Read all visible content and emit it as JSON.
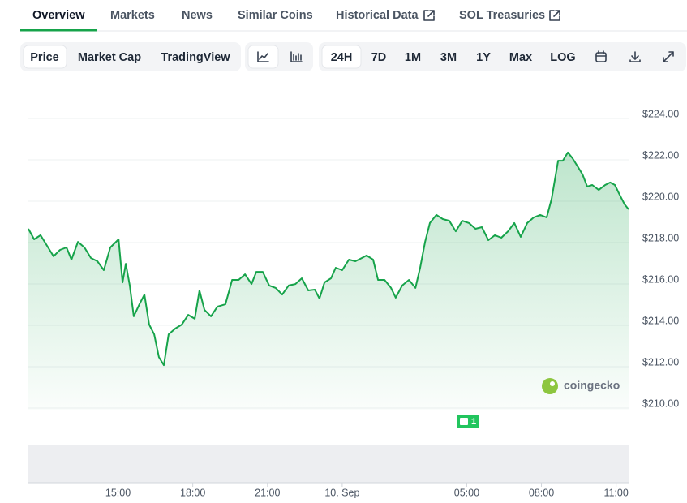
{
  "tabs": [
    "Overview",
    "Markets",
    "News",
    "Similar Coins",
    "Historical Data",
    "SOL Treasuries"
  ],
  "view_buttons": [
    "Price",
    "Market Cap",
    "TradingView"
  ],
  "range_buttons": [
    "24H",
    "7D",
    "1M",
    "3M",
    "1Y",
    "Max",
    "LOG"
  ],
  "chart_data": {
    "type": "line",
    "color": "#16a34a",
    "x": [
      11.4,
      11.63,
      11.89,
      12.15,
      12.41,
      12.67,
      12.93,
      13.13,
      13.39,
      13.65,
      13.91,
      14.17,
      14.43,
      14.69,
      15.02,
      15.18,
      15.31,
      15.47,
      15.63,
      15.86,
      16.06,
      16.25,
      16.45,
      16.64,
      16.84,
      17.03,
      17.3,
      17.56,
      17.82,
      18.08,
      18.27,
      18.47,
      18.73,
      18.99,
      19.31,
      19.58,
      19.84,
      20.1,
      20.36,
      20.55,
      20.81,
      21.07,
      21.33,
      21.59,
      21.85,
      22.12,
      22.38,
      22.64,
      22.9,
      23.09,
      23.29,
      23.55,
      23.74,
      24.0,
      24.27,
      24.53,
      24.79,
      24.98,
      25.24,
      25.44,
      25.7,
      25.96,
      26.15,
      26.41,
      26.68,
      26.94,
      27.13,
      27.33,
      27.52,
      27.78,
      28.04,
      28.3,
      28.56,
      28.82,
      29.09,
      29.35,
      29.61,
      29.87,
      30.13,
      30.39,
      30.66,
      30.91,
      31.17,
      31.43,
      31.69,
      31.95,
      32.21,
      32.41,
      32.67,
      32.86,
      33.06,
      33.25,
      33.45,
      33.65,
      33.84,
      34.04,
      34.3,
      34.56,
      34.76,
      34.95,
      35.14,
      35.34,
      35.5
    ],
    "values": [
      218.47,
      217.96,
      218.16,
      217.65,
      217.14,
      217.45,
      217.57,
      216.98,
      217.84,
      217.57,
      217.06,
      216.9,
      216.47,
      217.57,
      217.96,
      215.88,
      216.78,
      215.73,
      214.24,
      214.82,
      215.29,
      213.84,
      213.37,
      212.27,
      211.88,
      213.37,
      213.65,
      213.84,
      214.31,
      214.12,
      215.49,
      214.55,
      214.24,
      214.71,
      214.82,
      216.0,
      216.0,
      216.27,
      215.8,
      216.39,
      216.39,
      215.73,
      215.61,
      215.29,
      215.73,
      215.8,
      216.08,
      215.49,
      215.53,
      215.1,
      215.88,
      216.08,
      216.59,
      216.47,
      216.98,
      216.9,
      217.06,
      217.18,
      216.98,
      216.0,
      216.0,
      215.61,
      215.14,
      215.73,
      216.0,
      215.61,
      216.59,
      217.84,
      218.75,
      219.14,
      218.94,
      218.86,
      218.35,
      218.86,
      218.75,
      218.47,
      218.55,
      217.92,
      218.16,
      218.04,
      218.35,
      218.75,
      218.08,
      218.75,
      219.02,
      219.14,
      219.02,
      219.92,
      221.76,
      221.76,
      222.16,
      221.88,
      221.49,
      221.1,
      220.51,
      220.59,
      220.35,
      220.59,
      220.71,
      220.59,
      220.12,
      219.65,
      219.41
    ],
    "xlim": [
      11.4,
      35.5
    ],
    "xticks": [
      {
        "value": 15,
        "label": "15:00"
      },
      {
        "value": 18,
        "label": "18:00"
      },
      {
        "value": 21,
        "label": "21:00"
      },
      {
        "value": 24,
        "label": "10. Sep"
      },
      {
        "value": 29,
        "label": "05:00"
      },
      {
        "value": 32,
        "label": "08:00"
      },
      {
        "value": 35,
        "label": "11:00"
      }
    ],
    "ylim": [
      210,
      224
    ],
    "yticks": [
      {
        "value": 210,
        "label": "$210.00"
      },
      {
        "value": 212,
        "label": "$212.00"
      },
      {
        "value": 214,
        "label": "$214.00"
      },
      {
        "value": 216,
        "label": "$216.00"
      },
      {
        "value": 218,
        "label": "$218.00"
      },
      {
        "value": 220,
        "label": "$220.00"
      },
      {
        "value": 222,
        "label": "$222.00"
      },
      {
        "value": 224,
        "label": "$224.00"
      }
    ],
    "grid": true,
    "event_badge": "1",
    "watermark": "coingecko"
  }
}
